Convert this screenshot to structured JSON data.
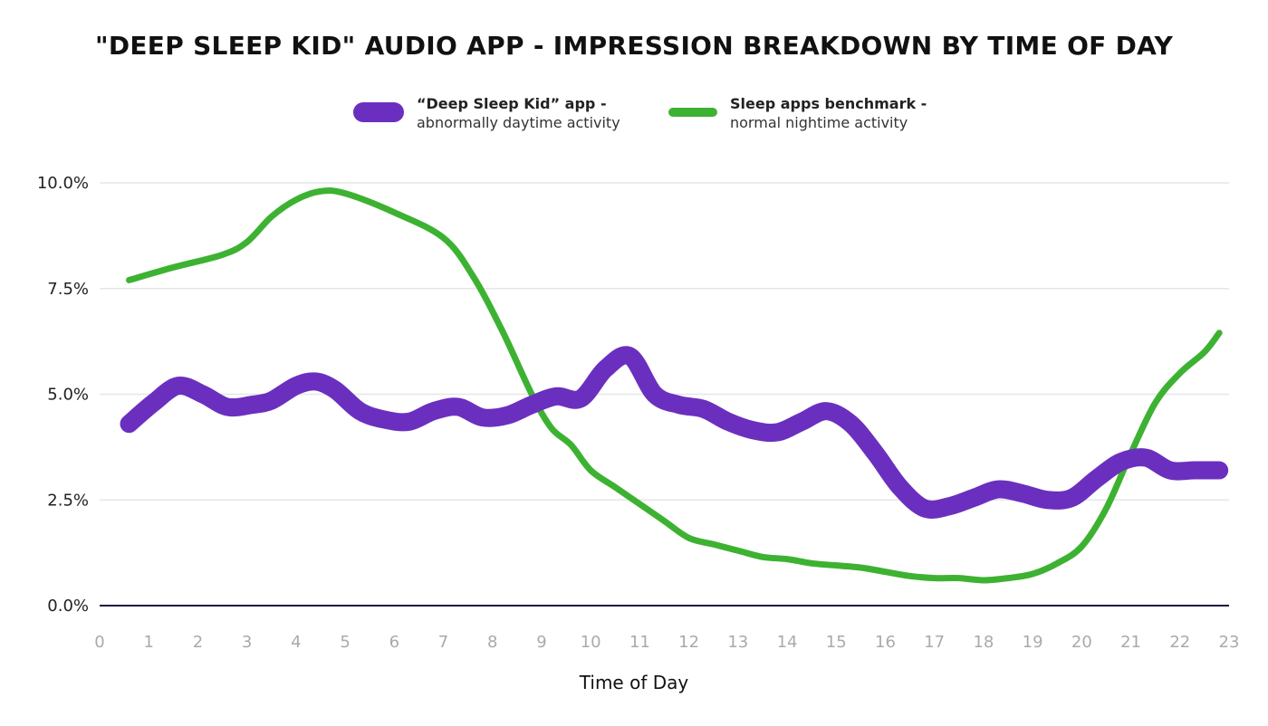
{
  "chart_data": {
    "type": "line",
    "title": "\"DEEP SLEEP KID\" AUDIO APP - IMPRESSION BREAKDOWN BY TIME OF DAY",
    "xlabel": "Time of Day",
    "ylabel": "",
    "ylim": [
      0,
      10
    ],
    "xlim": [
      0,
      23
    ],
    "y_ticks": [
      "0.0%",
      "2.5%",
      "5.0%",
      "7.5%",
      "10.0%"
    ],
    "y_tick_values": [
      0,
      2.5,
      5,
      7.5,
      10
    ],
    "x_ticks": [
      "0",
      "1",
      "2",
      "3",
      "4",
      "5",
      "6",
      "7",
      "8",
      "9",
      "10",
      "11",
      "12",
      "13",
      "14",
      "15",
      "16",
      "17",
      "18",
      "19",
      "20",
      "21",
      "22",
      "23"
    ],
    "grid": true,
    "legend_position": "top-center",
    "series": [
      {
        "name": "“Deep Sleep Kid” app",
        "note": "abnormally daytime activity",
        "color": "#6b2fbf",
        "x": [
          0.6,
          1.1,
          1.6,
          2.1,
          2.6,
          3.1,
          3.5,
          4.0,
          4.4,
          4.8,
          5.3,
          5.8,
          6.3,
          6.8,
          7.3,
          7.8,
          8.3,
          8.8,
          9.3,
          9.8,
          10.3,
          10.8,
          11.3,
          11.8,
          12.3,
          12.8,
          13.3,
          13.8,
          14.3,
          14.8,
          15.3,
          15.8,
          16.3,
          16.8,
          17.3,
          17.8,
          18.3,
          18.8,
          19.3,
          19.8,
          20.3,
          20.8,
          21.3,
          21.8,
          22.3,
          22.8
        ],
        "values": [
          4.3,
          4.8,
          5.2,
          5.0,
          4.7,
          4.75,
          4.85,
          5.2,
          5.3,
          5.1,
          4.6,
          4.4,
          4.35,
          4.6,
          4.7,
          4.45,
          4.5,
          4.75,
          4.95,
          4.9,
          5.6,
          5.9,
          5.0,
          4.75,
          4.65,
          4.35,
          4.15,
          4.1,
          4.35,
          4.6,
          4.3,
          3.6,
          2.8,
          2.3,
          2.35,
          2.55,
          2.75,
          2.65,
          2.5,
          2.55,
          3.0,
          3.4,
          3.5,
          3.2,
          3.2,
          3.2
        ]
      },
      {
        "name": "Sleep apps benchmark",
        "note": "normal nightime activity",
        "color": "#3db232",
        "x": [
          0.6,
          1.5,
          2.5,
          3.0,
          3.5,
          4.0,
          4.5,
          5.0,
          6.0,
          7.0,
          7.6,
          8.2,
          8.8,
          9.2,
          9.6,
          10.0,
          10.5,
          11.0,
          11.5,
          12.0,
          12.5,
          13.0,
          13.5,
          14.0,
          14.5,
          15.0,
          15.5,
          16.0,
          16.5,
          17.0,
          17.5,
          18.0,
          18.5,
          19.0,
          19.5,
          20.0,
          20.5,
          21.0,
          21.5,
          22.0,
          22.5,
          22.8
        ],
        "values": [
          7.7,
          8.0,
          8.3,
          8.6,
          9.2,
          9.6,
          9.8,
          9.75,
          9.3,
          8.7,
          7.8,
          6.5,
          5.0,
          4.2,
          3.8,
          3.2,
          2.8,
          2.4,
          2.0,
          1.6,
          1.45,
          1.3,
          1.15,
          1.1,
          1.0,
          0.95,
          0.9,
          0.8,
          0.7,
          0.65,
          0.65,
          0.6,
          0.65,
          0.75,
          1.0,
          1.4,
          2.3,
          3.6,
          4.8,
          5.5,
          6.0,
          6.45
        ]
      }
    ]
  }
}
